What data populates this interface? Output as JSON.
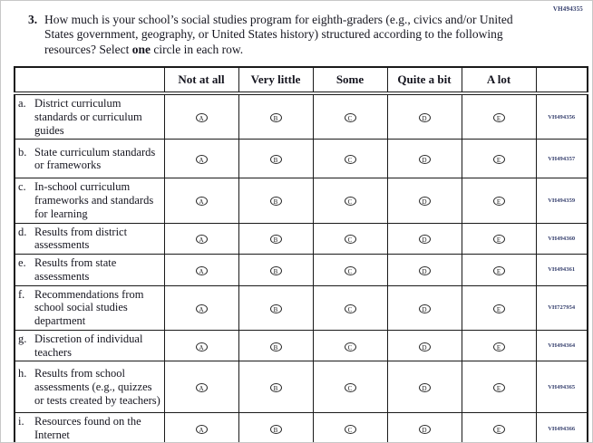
{
  "page": {
    "top_right_code": "VH494355"
  },
  "question": {
    "number": "3.",
    "text_part1": "How much is your school’s social studies program for eighth-graders (e.g., civics and/or United States government, geography, or United States history) structured according to the following resources? Select ",
    "bold_word": "one",
    "text_part2": " circle in each row."
  },
  "table": {
    "columns": [
      "Not at all",
      "Very little",
      "Some",
      "Quite a bit",
      "A lot"
    ],
    "option_letters": [
      "A",
      "B",
      "C",
      "D",
      "E"
    ],
    "rows": [
      {
        "letter": "a.",
        "label": "District curriculum standards or curriculum guides",
        "code": "VH494356",
        "lines": 3
      },
      {
        "letter": "b.",
        "label": "State curriculum standards or frameworks",
        "code": "VH494357",
        "lines": 3
      },
      {
        "letter": "c.",
        "label": "In-school curriculum frameworks and standards for learning",
        "code": "VH494359",
        "lines": 3
      },
      {
        "letter": "d.",
        "label": "Results from district assessments",
        "code": "VH494360",
        "lines": 2
      },
      {
        "letter": "e.",
        "label": "Results from state assessments",
        "code": "VH494361",
        "lines": 2
      },
      {
        "letter": "f.",
        "label": "Recommendations from school social studies department",
        "code": "VH727954",
        "lines": 3
      },
      {
        "letter": "g.",
        "label": "Discretion of individual teachers",
        "code": "VH494364",
        "lines": 2
      },
      {
        "letter": "h.",
        "label": "Results from school assessments (e.g., quizzes or tests created by teachers)",
        "code": "VH494365",
        "lines": 4
      },
      {
        "letter": "i.",
        "label": "Resources found on the Internet",
        "code": "VH494366",
        "lines": 2
      }
    ]
  },
  "colors": {
    "text": "#15151f",
    "code_text": "#323c6b",
    "border": "#1a1a1a"
  }
}
